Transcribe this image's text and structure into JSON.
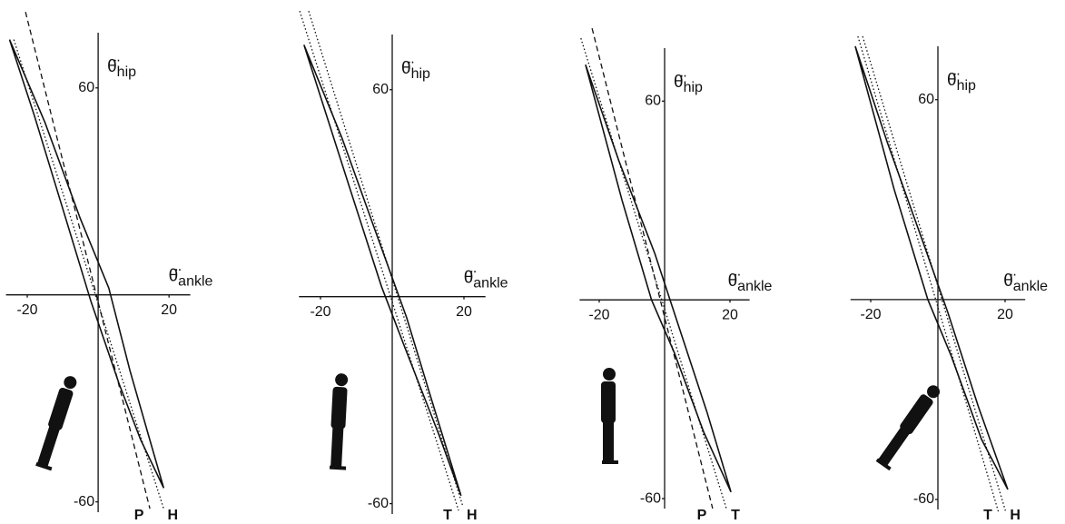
{
  "chart_data": [
    {
      "type": "line",
      "xlabel": {
        "symbol": "θ̈",
        "subscript": "ankle"
      },
      "ylabel": {
        "symbol": "θ̈",
        "subscript": "hip"
      },
      "xlim": [
        -26,
        26
      ],
      "ylim": [
        -63,
        76
      ],
      "xticks": [
        -20,
        20
      ],
      "yticks": [
        -60,
        60
      ],
      "series": [
        {
          "color": "#111111",
          "style": "solid",
          "x": [
            -25,
            -15,
            -5,
            3,
            9,
            14,
            18.5,
            12,
            6,
            -2,
            -10,
            -18,
            -25
          ],
          "values": [
            74,
            50,
            22,
            2,
            -22,
            -40,
            -56,
            -42,
            -26,
            -2,
            25,
            52,
            74
          ]
        },
        {
          "name": "P",
          "color": "#111111",
          "style": "dashed",
          "x": [
            -20.5,
            14.6
          ],
          "values": [
            82,
            -62
          ]
        },
        {
          "name": "H",
          "color": "#111111",
          "style": "dotted",
          "x": [
            -23.8,
            18.5
          ],
          "values": [
            74,
            -62
          ]
        }
      ]
    },
    {
      "type": "line",
      "xlabel": {
        "symbol": "θ̈",
        "subscript": "ankle"
      },
      "ylabel": {
        "symbol": "θ̈",
        "subscript": "hip"
      },
      "xlim": [
        -26,
        26
      ],
      "ylim": [
        -63,
        76
      ],
      "xticks": [
        -20,
        20
      ],
      "yticks": [
        -60,
        60
      ],
      "series": [
        {
          "color": "#111111",
          "style": "solid",
          "x": [
            -24.6,
            -14,
            -4,
            4,
            11,
            19.2,
            13,
            4,
            -3,
            -12,
            -24.6
          ],
          "values": [
            73,
            46,
            17,
            -6,
            -30,
            -57.7,
            -40,
            -16,
            3,
            32,
            73
          ]
        },
        {
          "name": "T",
          "color": "#111111",
          "style": "dotted",
          "x": [
            -25.8,
            18.5
          ],
          "values": [
            82.8,
            -62
          ]
        },
        {
          "name": "H",
          "color": "#111111",
          "style": "dotted",
          "x": [
            -23.3,
            19.7
          ],
          "values": [
            82.8,
            -60.8
          ]
        }
      ]
    },
    {
      "type": "line",
      "xlabel": {
        "symbol": "θ̈",
        "subscript": "ankle"
      },
      "ylabel": {
        "symbol": "θ̈",
        "subscript": "hip"
      },
      "xlim": [
        -26,
        26
      ],
      "ylim": [
        -63,
        76
      ],
      "xticks": [
        -20,
        20
      ],
      "yticks": [
        -60,
        60
      ],
      "series": [
        {
          "color": "#111111",
          "style": "solid",
          "x": [
            -24.2,
            -14,
            -3,
            5,
            13,
            20.3,
            12,
            3,
            -4,
            -13,
            -24.2
          ],
          "values": [
            71,
            42,
            14,
            -10,
            -34,
            -58,
            -40,
            -16,
            0,
            30,
            71
          ]
        },
        {
          "name": "P",
          "color": "#111111",
          "style": "dashed",
          "x": [
            -22.2,
            14.7
          ],
          "values": [
            82,
            -63
          ]
        },
        {
          "name": "T",
          "color": "#111111",
          "style": "dotted",
          "x": [
            -25.6,
            18.9
          ],
          "values": [
            79,
            -63
          ]
        }
      ]
    },
    {
      "type": "line",
      "xlabel": {
        "symbol": "θ̈",
        "subscript": "ankle"
      },
      "ylabel": {
        "symbol": "θ̈",
        "subscript": "hip"
      },
      "xlim": [
        -26,
        26
      ],
      "ylim": [
        -63,
        76
      ],
      "xticks": [
        -20,
        20
      ],
      "yticks": [
        -60,
        60
      ],
      "series": [
        {
          "color": "#111111",
          "style": "solid",
          "x": [
            -24.6,
            -15,
            -4,
            3,
            12,
            20.8,
            13,
            4,
            -3,
            -13,
            -24.6
          ],
          "values": [
            76,
            47,
            16,
            -4,
            -32,
            -57,
            -42,
            -17,
            0,
            33,
            76
          ]
        },
        {
          "name": "T",
          "color": "#111111",
          "style": "dotted",
          "x": [
            -23.8,
            18.1
          ],
          "values": [
            79,
            -64
          ]
        },
        {
          "name": "H",
          "color": "#111111",
          "style": "dotted",
          "x": [
            -22.4,
            20.3
          ],
          "values": [
            79,
            -64
          ]
        }
      ]
    }
  ]
}
